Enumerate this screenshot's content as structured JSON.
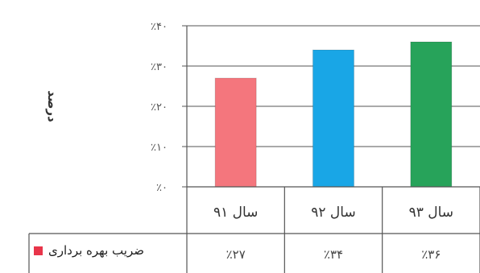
{
  "chart_data": {
    "type": "bar",
    "ylabel": "درصد",
    "categories": [
      "سال ۹۱",
      "سال ۹۲",
      "سال ۹۳"
    ],
    "series": [
      {
        "name": "ضریب بهره برداری",
        "values": [
          27,
          34,
          36
        ]
      }
    ],
    "bar_colors": [
      "#f4767d",
      "#19a6e6",
      "#27a35a"
    ],
    "legend_color": "#e8354a",
    "ylim": [
      0,
      40
    ],
    "yticks": [
      0,
      10,
      20,
      30,
      40
    ],
    "ytick_labels": [
      "٪۰",
      "٪۱۰",
      "٪۲۰",
      "٪۳۰",
      "٪۴۰"
    ],
    "data_table": [
      "٪۲۷",
      "٪۳۴",
      "٪۳۶"
    ],
    "grid": true,
    "legend_placement": "data-table-left"
  }
}
